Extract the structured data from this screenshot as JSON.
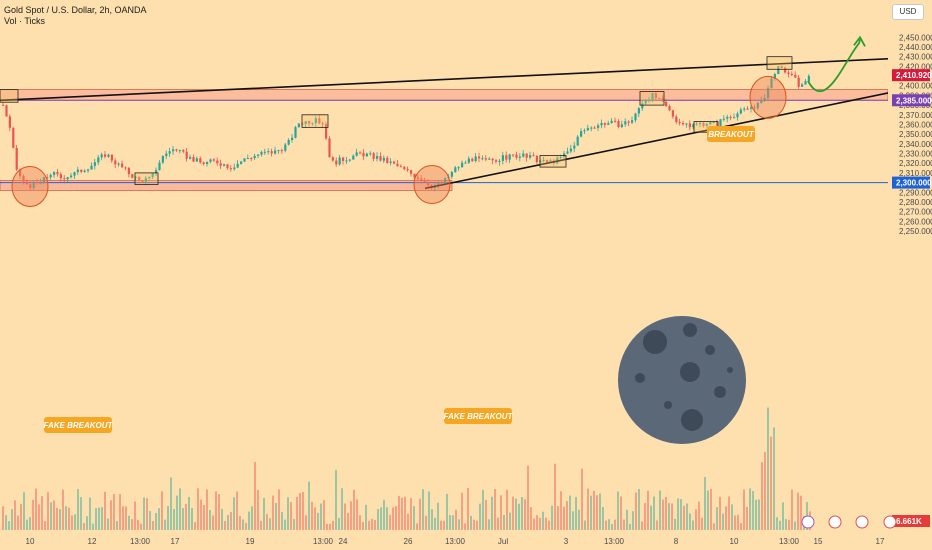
{
  "header": {
    "title": "Gold Spot / U.S. Dollar, 2h, OANDA",
    "subtitle": "Vol · Ticks"
  },
  "currency_button": "USD",
  "price_axis": {
    "ticks": [
      "2,450.000",
      "2,440.000",
      "2,430.000",
      "2,420.000",
      "2,400.000",
      "2,390.000",
      "2,380.000",
      "2,370.000",
      "2,360.000",
      "2,350.000",
      "2,340.000",
      "2,330.000",
      "2,320.000",
      "2,310.000",
      "2,290.000",
      "2,280.000",
      "2,270.000",
      "2,260.000",
      "2,250.000"
    ],
    "tags": [
      {
        "label": "2,410.920",
        "color": "#d81b3c"
      },
      {
        "label": "2,385.000",
        "color": "#7b3fb4"
      },
      {
        "label": "2,300.000",
        "color": "#1e63d6"
      },
      {
        "label": "6.661K",
        "color": "#e53b3b"
      }
    ]
  },
  "time_axis": {
    "labels": [
      "10",
      "12",
      "13:00",
      "17",
      "19",
      "13:00",
      "24",
      "26",
      "13:00",
      "Jul",
      "3",
      "13:00",
      "8",
      "10",
      "13:00",
      "15",
      "17"
    ]
  },
  "annotations": {
    "fake_breakout_1": "FAKE BREAKOUT",
    "fake_breakout_2": "FAKE BREAKOUT",
    "breakout": "BREAKOUT"
  },
  "colors": {
    "background": "#fedfae",
    "zone_fill": "#f7a08c",
    "up_candle": "#26a69a",
    "down_candle": "#ef5350",
    "callout": "#f5a623",
    "arrow": "#2e9d2e",
    "moon": "#5a6878"
  },
  "chart_data": {
    "type": "candlestick",
    "title": "Gold Spot / U.S. Dollar, 2h, OANDA",
    "ylim": [
      2242,
      2455
    ],
    "support_zone": [
      2292,
      2302
    ],
    "resistance_zone": [
      2385,
      2396
    ],
    "horizontal_levels": [
      2385,
      2300
    ],
    "last_price": 2410.92,
    "trendlines": [
      {
        "name": "upper",
        "from": [
          0,
          2385
        ],
        "to": [
          932,
          2430
        ]
      },
      {
        "name": "rising",
        "from": [
          425,
          2294
        ],
        "to": [
          890,
          2393
        ]
      }
    ],
    "path": [
      [
        0,
        2387
      ],
      [
        8,
        2360
      ],
      [
        15,
        2315
      ],
      [
        22,
        2300
      ],
      [
        30,
        2297
      ],
      [
        40,
        2300
      ],
      [
        50,
        2310
      ],
      [
        60,
        2305
      ],
      [
        75,
        2310
      ],
      [
        90,
        2318
      ],
      [
        105,
        2330
      ],
      [
        115,
        2320
      ],
      [
        125,
        2312
      ],
      [
        138,
        2302
      ],
      [
        150,
        2304
      ],
      [
        160,
        2325
      ],
      [
        170,
        2335
      ],
      [
        180,
        2330
      ],
      [
        190,
        2325
      ],
      [
        200,
        2320
      ],
      [
        215,
        2322
      ],
      [
        230,
        2316
      ],
      [
        245,
        2325
      ],
      [
        260,
        2330
      ],
      [
        275,
        2332
      ],
      [
        287,
        2340
      ],
      [
        298,
        2362
      ],
      [
        312,
        2364
      ],
      [
        322,
        2362
      ],
      [
        330,
        2320
      ],
      [
        345,
        2325
      ],
      [
        360,
        2330
      ],
      [
        375,
        2326
      ],
      [
        390,
        2320
      ],
      [
        405,
        2312
      ],
      [
        420,
        2304
      ],
      [
        432,
        2296
      ],
      [
        442,
        2300
      ],
      [
        455,
        2315
      ],
      [
        470,
        2325
      ],
      [
        485,
        2322
      ],
      [
        500,
        2325
      ],
      [
        515,
        2328
      ],
      [
        530,
        2326
      ],
      [
        545,
        2320
      ],
      [
        558,
        2324
      ],
      [
        570,
        2335
      ],
      [
        580,
        2352
      ],
      [
        590,
        2358
      ],
      [
        605,
        2362
      ],
      [
        620,
        2360
      ],
      [
        632,
        2365
      ],
      [
        642,
        2385
      ],
      [
        652,
        2390
      ],
      [
        665,
        2378
      ],
      [
        675,
        2365
      ],
      [
        685,
        2358
      ],
      [
        695,
        2360
      ],
      [
        705,
        2362
      ],
      [
        715,
        2360
      ],
      [
        725,
        2368
      ],
      [
        738,
        2372
      ],
      [
        750,
        2378
      ],
      [
        760,
        2382
      ],
      [
        768,
        2400
      ],
      [
        775,
        2418
      ],
      [
        785,
        2415
      ],
      [
        795,
        2405
      ],
      [
        800,
        2398
      ],
      [
        808,
        2412
      ]
    ],
    "forecast": [
      [
        808,
        2405
      ],
      [
        822,
        2398
      ],
      [
        838,
        2410
      ],
      [
        850,
        2430
      ],
      [
        860,
        2448
      ]
    ]
  }
}
